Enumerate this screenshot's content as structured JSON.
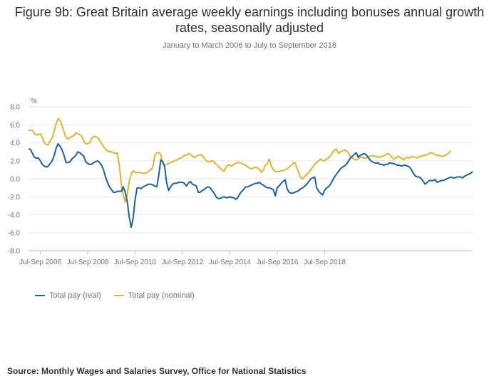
{
  "chart_data": {
    "type": "line",
    "title": "Figure 9b: Great Britain average weekly earnings including bonuses annual growth rates, seasonally adjusted",
    "subtitle": "January to March 2006 to July to September 2018",
    "ylabel": "%",
    "ylim": [
      -8,
      8
    ],
    "y_ticks": [
      "8.0",
      "6.0",
      "4.0",
      "2.0",
      "0.0",
      "-2.0",
      "-4.0",
      "-6.0",
      "-8.0"
    ],
    "y_tick_values": [
      8,
      6,
      4,
      2,
      0,
      -2,
      -4,
      -6,
      -8
    ],
    "x_ticks": [
      "Jul-Sep 2006",
      "Jul-Sep 2008",
      "Jul-Sep 2010",
      "Jul-Sep 2012",
      "Jul-Sep 2014",
      "Jul-Sep 2016",
      "Jul-Sep 2018"
    ],
    "x_tick_index": [
      6,
      30,
      54,
      78,
      102,
      126,
      150
    ],
    "grid": true,
    "legend_position": "bottom-left",
    "series": [
      {
        "name": "Total pay (real)",
        "color": "#206095",
        "values": [
          3.3,
          3.3,
          2.8,
          2.4,
          2.3,
          2.3,
          2.0,
          1.6,
          1.4,
          1.3,
          1.4,
          1.7,
          2.0,
          2.6,
          3.4,
          3.9,
          3.6,
          3.2,
          2.6,
          1.8,
          1.8,
          1.9,
          2.2,
          2.4,
          2.6,
          3.0,
          2.9,
          2.7,
          2.5,
          1.9,
          1.7,
          1.6,
          1.6,
          1.8,
          1.9,
          2.0,
          1.8,
          1.5,
          1.0,
          0.2,
          -0.4,
          -0.9,
          -1.2,
          -1.5,
          -1.5,
          -1.4,
          -1.4,
          -1.4,
          -0.9,
          -1.5,
          -2.5,
          -4.2,
          -5.4,
          -4.4,
          -2.3,
          -1.0,
          -1.0,
          -1.1,
          -0.9,
          -0.8,
          -0.7,
          -0.6,
          -0.6,
          -0.7,
          -0.8,
          -0.9,
          0.4,
          2.1,
          1.9,
          1.3,
          -0.5,
          -1.3,
          -0.9,
          -0.6,
          -0.5,
          -0.5,
          -0.4,
          -0.4,
          -0.4,
          -0.5,
          -0.8,
          -0.5,
          -0.3,
          -0.6,
          -0.7,
          -0.8,
          -1.5,
          -1.5,
          -1.3,
          -1.2,
          -1.0,
          -0.9,
          -1.0,
          -1.3,
          -1.6,
          -2.0,
          -2.2,
          -2.2,
          -2.1,
          -2.0,
          -2.1,
          -2.1,
          -2.0,
          -2.1,
          -2.1,
          -2.3,
          -2.1,
          -1.7,
          -1.4,
          -1.2,
          -0.9,
          -0.9,
          -0.8,
          -0.7,
          -0.6,
          -0.5,
          -0.5,
          -0.4,
          -0.6,
          -0.7,
          -0.9,
          -1.0,
          -1.0,
          -1.1,
          -1.2,
          -1.9,
          -1.0,
          -0.8,
          -0.5,
          -0.3,
          -0.1,
          -1.1,
          -1.5,
          -1.6,
          -1.6,
          -1.5,
          -1.4,
          -1.3,
          -1.1,
          -1.0,
          -0.8,
          -0.6,
          -0.3,
          0.0,
          0.1,
          0.2,
          -1.0,
          -1.4,
          -1.6,
          -1.8,
          -1.3,
          -1.0,
          -0.9,
          -0.6,
          -0.2,
          0.2,
          0.5,
          0.8,
          1.1,
          1.3,
          1.4,
          1.6,
          1.9,
          2.3,
          2.5,
          2.7,
          2.9,
          2.4,
          2.6,
          2.7,
          2.8,
          2.7,
          2.4,
          2.1,
          1.9,
          1.8,
          1.7,
          1.8,
          1.6,
          1.6,
          1.5,
          1.6,
          1.6,
          1.8,
          1.7,
          1.7,
          1.6,
          1.5,
          1.5,
          1.4,
          1.5,
          1.5,
          1.4,
          1.3,
          1.0,
          0.6,
          0.3,
          0.2,
          0.2,
          0.0,
          -0.3,
          -0.6,
          -0.4,
          -0.2,
          -0.2,
          -0.2,
          -0.1,
          -0.4,
          -0.3,
          -0.2,
          -0.2,
          -0.1,
          0.0,
          0.1,
          0.2,
          0.1,
          0.1,
          0.2,
          0.2,
          0.2,
          0.1,
          0.3,
          0.4,
          0.5,
          0.6,
          0.8
        ]
      },
      {
        "name": "Total pay (nominal)",
        "color": "#D9B536",
        "values": [
          5.4,
          5.4,
          5.4,
          5.0,
          4.9,
          4.9,
          5.0,
          4.6,
          4.0,
          3.8,
          3.8,
          4.2,
          4.6,
          5.3,
          6.1,
          6.7,
          6.5,
          5.9,
          5.2,
          4.6,
          4.4,
          4.6,
          4.7,
          4.8,
          5.1,
          5.0,
          4.9,
          4.7,
          4.2,
          3.9,
          3.9,
          4.0,
          4.5,
          4.7,
          4.7,
          4.6,
          4.3,
          3.9,
          3.6,
          3.3,
          3.1,
          3.0,
          3.0,
          2.9,
          2.8,
          2.9,
          1.5,
          -0.6,
          -1.8,
          -2.6,
          -1.8,
          -0.3,
          0.5,
          0.9,
          0.7,
          0.7,
          0.7,
          0.7,
          0.6,
          0.6,
          0.7,
          0.9,
          1.0,
          1.3,
          2.6,
          2.9,
          2.9,
          2.7,
          1.7,
          1.5,
          1.6,
          1.7,
          1.8,
          1.9,
          2.0,
          2.1,
          2.2,
          2.3,
          2.4,
          2.6,
          2.6,
          2.8,
          2.7,
          2.5,
          2.4,
          2.5,
          2.6,
          2.7,
          2.6,
          2.3,
          2.0,
          1.9,
          1.9,
          2.0,
          1.9,
          1.6,
          1.4,
          1.2,
          1.0,
          0.8,
          1.3,
          1.5,
          1.5,
          1.4,
          1.6,
          1.7,
          1.8,
          1.8,
          1.7,
          1.6,
          1.5,
          1.3,
          1.2,
          1.1,
          1.2,
          1.3,
          1.2,
          1.1,
          0.7,
          1.0,
          1.5,
          1.7,
          2.2,
          1.4,
          1.0,
          0.8,
          0.8,
          0.8,
          0.9,
          0.9,
          1.0,
          1.1,
          1.3,
          1.5,
          1.7,
          1.8,
          1.2,
          0.6,
          0.1,
          0.0,
          0.3,
          0.5,
          0.7,
          1.0,
          1.3,
          1.6,
          1.8,
          2.0,
          2.2,
          2.0,
          2.0,
          2.2,
          2.3,
          2.6,
          2.9,
          3.2,
          3.3,
          2.8,
          3.0,
          3.1,
          3.2,
          3.1,
          2.9,
          2.5,
          2.3,
          2.2,
          2.1,
          2.2,
          2.4,
          2.4,
          2.3,
          2.3,
          2.4,
          2.5,
          2.6,
          2.5,
          2.5,
          2.4,
          2.4,
          2.5,
          2.5,
          2.7,
          2.8,
          2.7,
          2.4,
          2.2,
          2.3,
          2.5,
          2.4,
          2.3,
          2.1,
          2.3,
          2.4,
          2.3,
          2.5,
          2.4,
          2.4,
          2.3,
          2.5,
          2.5,
          2.6,
          2.6,
          2.7,
          2.8,
          2.9,
          2.8,
          2.7,
          2.6,
          2.6,
          2.5,
          2.5,
          2.6,
          2.7,
          2.9,
          3.1
        ]
      }
    ],
    "source": "Source: Monthly Wages and Salaries Survey, Office for National Statistics"
  }
}
